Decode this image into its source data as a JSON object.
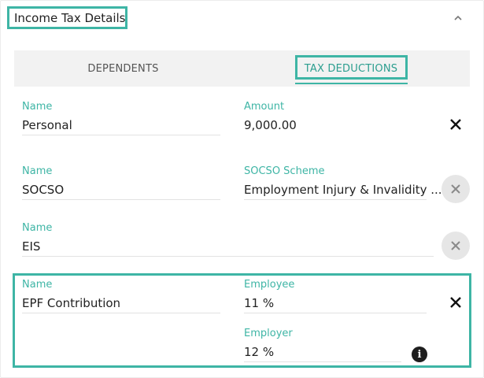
{
  "panel": {
    "title": "Income Tax Details"
  },
  "tabs": [
    {
      "label": "DEPENDENTS",
      "active": false
    },
    {
      "label": "TAX DEDUCTIONS",
      "active": true
    }
  ],
  "deductions": [
    {
      "name_label": "Name",
      "name_value": "Personal",
      "field_label": "Amount",
      "field_value": "9,000.00"
    },
    {
      "name_label": "Name",
      "name_value": "SOCSO",
      "field_label": "SOCSO Scheme",
      "field_value": "Employment Injury & Invalidity ..."
    },
    {
      "name_label": "Name",
      "name_value": "EIS"
    },
    {
      "name_label": "Name",
      "name_value": "EPF Contribution",
      "employee_label": "Employee",
      "employee_value": "11 %",
      "employer_label": "Employer",
      "employer_value": "12 %"
    }
  ],
  "icons": {
    "collapse": "chevron-up-icon",
    "remove": "close-icon",
    "info": "info-icon"
  },
  "colors": {
    "accent": "#3eb5a5",
    "tab_bg": "#f2f2f2",
    "circle_bg": "#e6e6e6"
  }
}
